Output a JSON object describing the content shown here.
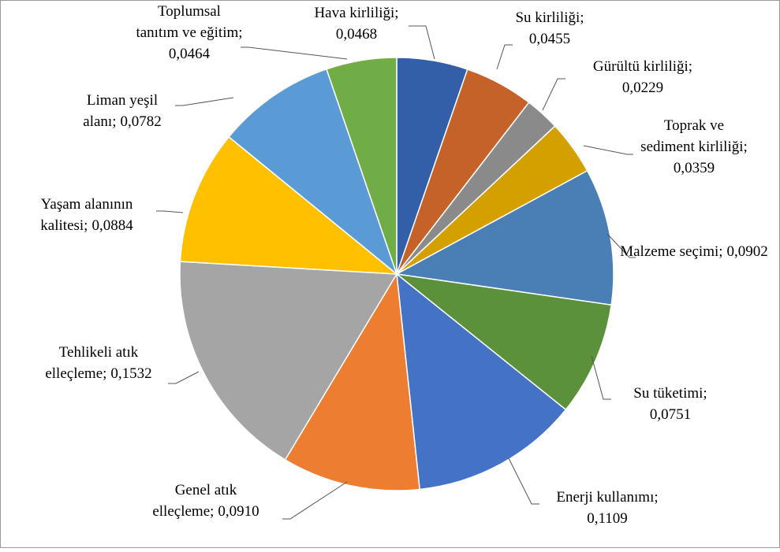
{
  "chart_data": {
    "type": "pie",
    "categories": [
      "Hava kirliliği;",
      "Su kirliliği;",
      "Gürültü kirliliği;",
      "Toprak ve sediment kirliliği;",
      "Malzeme seçimi;",
      "Su tüketimi;",
      "Enerji kullanımı;",
      "Genel atık elleçleme;",
      "Tehlikeli atık elleçleme;",
      "Yaşam alanının kalitesi;",
      "Liman yeşil alanı;",
      "Toplumsal tanıtım ve eğitim;"
    ],
    "values": [
      0.0468,
      0.0455,
      0.0229,
      0.0359,
      0.0902,
      0.0751,
      0.1109,
      0.091,
      0.1532,
      0.0884,
      0.0782,
      0.0464
    ],
    "value_labels": [
      "0,0468",
      "0,0455",
      "0,0229",
      "0,0359",
      "0,0902",
      "0,0751",
      "0,1109",
      "0,0910",
      "0,1532",
      "0,0884",
      "0,0782",
      "0,0464"
    ],
    "colors": [
      "#335ea8",
      "#c5622a",
      "#8a8a8a",
      "#d4a000",
      "#4a7fb5",
      "#5c913b",
      "#4472c4",
      "#ed7d31",
      "#a5a5a5",
      "#ffc000",
      "#5b9bd5",
      "#70ad47"
    ]
  }
}
